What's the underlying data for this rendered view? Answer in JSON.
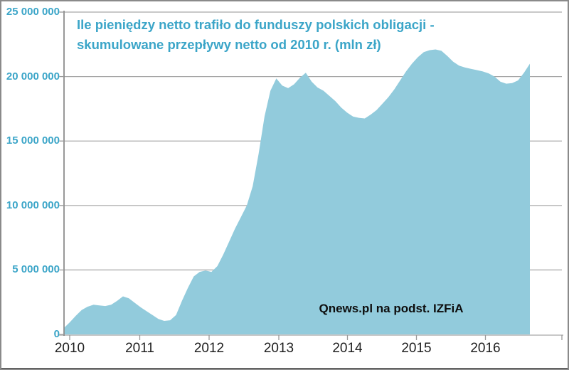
{
  "chart_data": {
    "type": "area",
    "title": "Ile pieniędzy netto trafiło do funduszy polskich obligacji - skumulowane przepływy netto od 2010 r. (mln zł)",
    "title_lines": [
      "Ile pieniędzy netto trafiło do funduszy polskich obligacji -",
      "skumulowane przepływy netto od 2010 r. (mln zł)"
    ],
    "x_unit": "month",
    "x_start": "2010-01",
    "x_end": "2016-08",
    "values": [
      500000,
      950000,
      1450000,
      1900000,
      2150000,
      2300000,
      2250000,
      2200000,
      2300000,
      2600000,
      2950000,
      2800000,
      2450000,
      2100000,
      1800000,
      1500000,
      1200000,
      1050000,
      1100000,
      1500000,
      2600000,
      3600000,
      4500000,
      4850000,
      4950000,
      4850000,
      5300000,
      6200000,
      7200000,
      8200000,
      9100000,
      10000000,
      11500000,
      14000000,
      16900000,
      18900000,
      19850000,
      19300000,
      19100000,
      19400000,
      19900000,
      20300000,
      19600000,
      19150000,
      18900000,
      18500000,
      18100000,
      17600000,
      17200000,
      16900000,
      16800000,
      16750000,
      17050000,
      17400000,
      17900000,
      18400000,
      19000000,
      19700000,
      20400000,
      21000000,
      21500000,
      21900000,
      22050000,
      22100000,
      22000000,
      21600000,
      21150000,
      20850000,
      20700000,
      20600000,
      20500000,
      20400000,
      20250000,
      20000000,
      19600000,
      19450000,
      19500000,
      19700000,
      20300000,
      21000000
    ],
    "x_tick_labels": [
      "2010",
      "2011",
      "2012",
      "2013",
      "2014",
      "2015",
      "2016"
    ],
    "y_tick_labels": [
      "0",
      "5 000 000",
      "10 000 000",
      "15 000 000",
      "20 000 000",
      "25 000 000"
    ],
    "y_tick_values": [
      0,
      5000000,
      10000000,
      15000000,
      20000000,
      25000000
    ],
    "ylim": [
      0,
      25000000
    ],
    "grid": "horizontal",
    "legend": "none",
    "colors": {
      "area_fill": "#92CBDC",
      "title_text": "#3BA5C8",
      "y_labels": "#3BA5C8",
      "x_labels": "#1F1F1F",
      "gridline": "#A6A6A6",
      "y_axis_line": "#8C8C8C",
      "x_axis_line": "#C8C8C8",
      "tick_mark": "#999999"
    }
  },
  "annotations": {
    "watermark": "Qnews.pl na podst. IZFiA"
  }
}
